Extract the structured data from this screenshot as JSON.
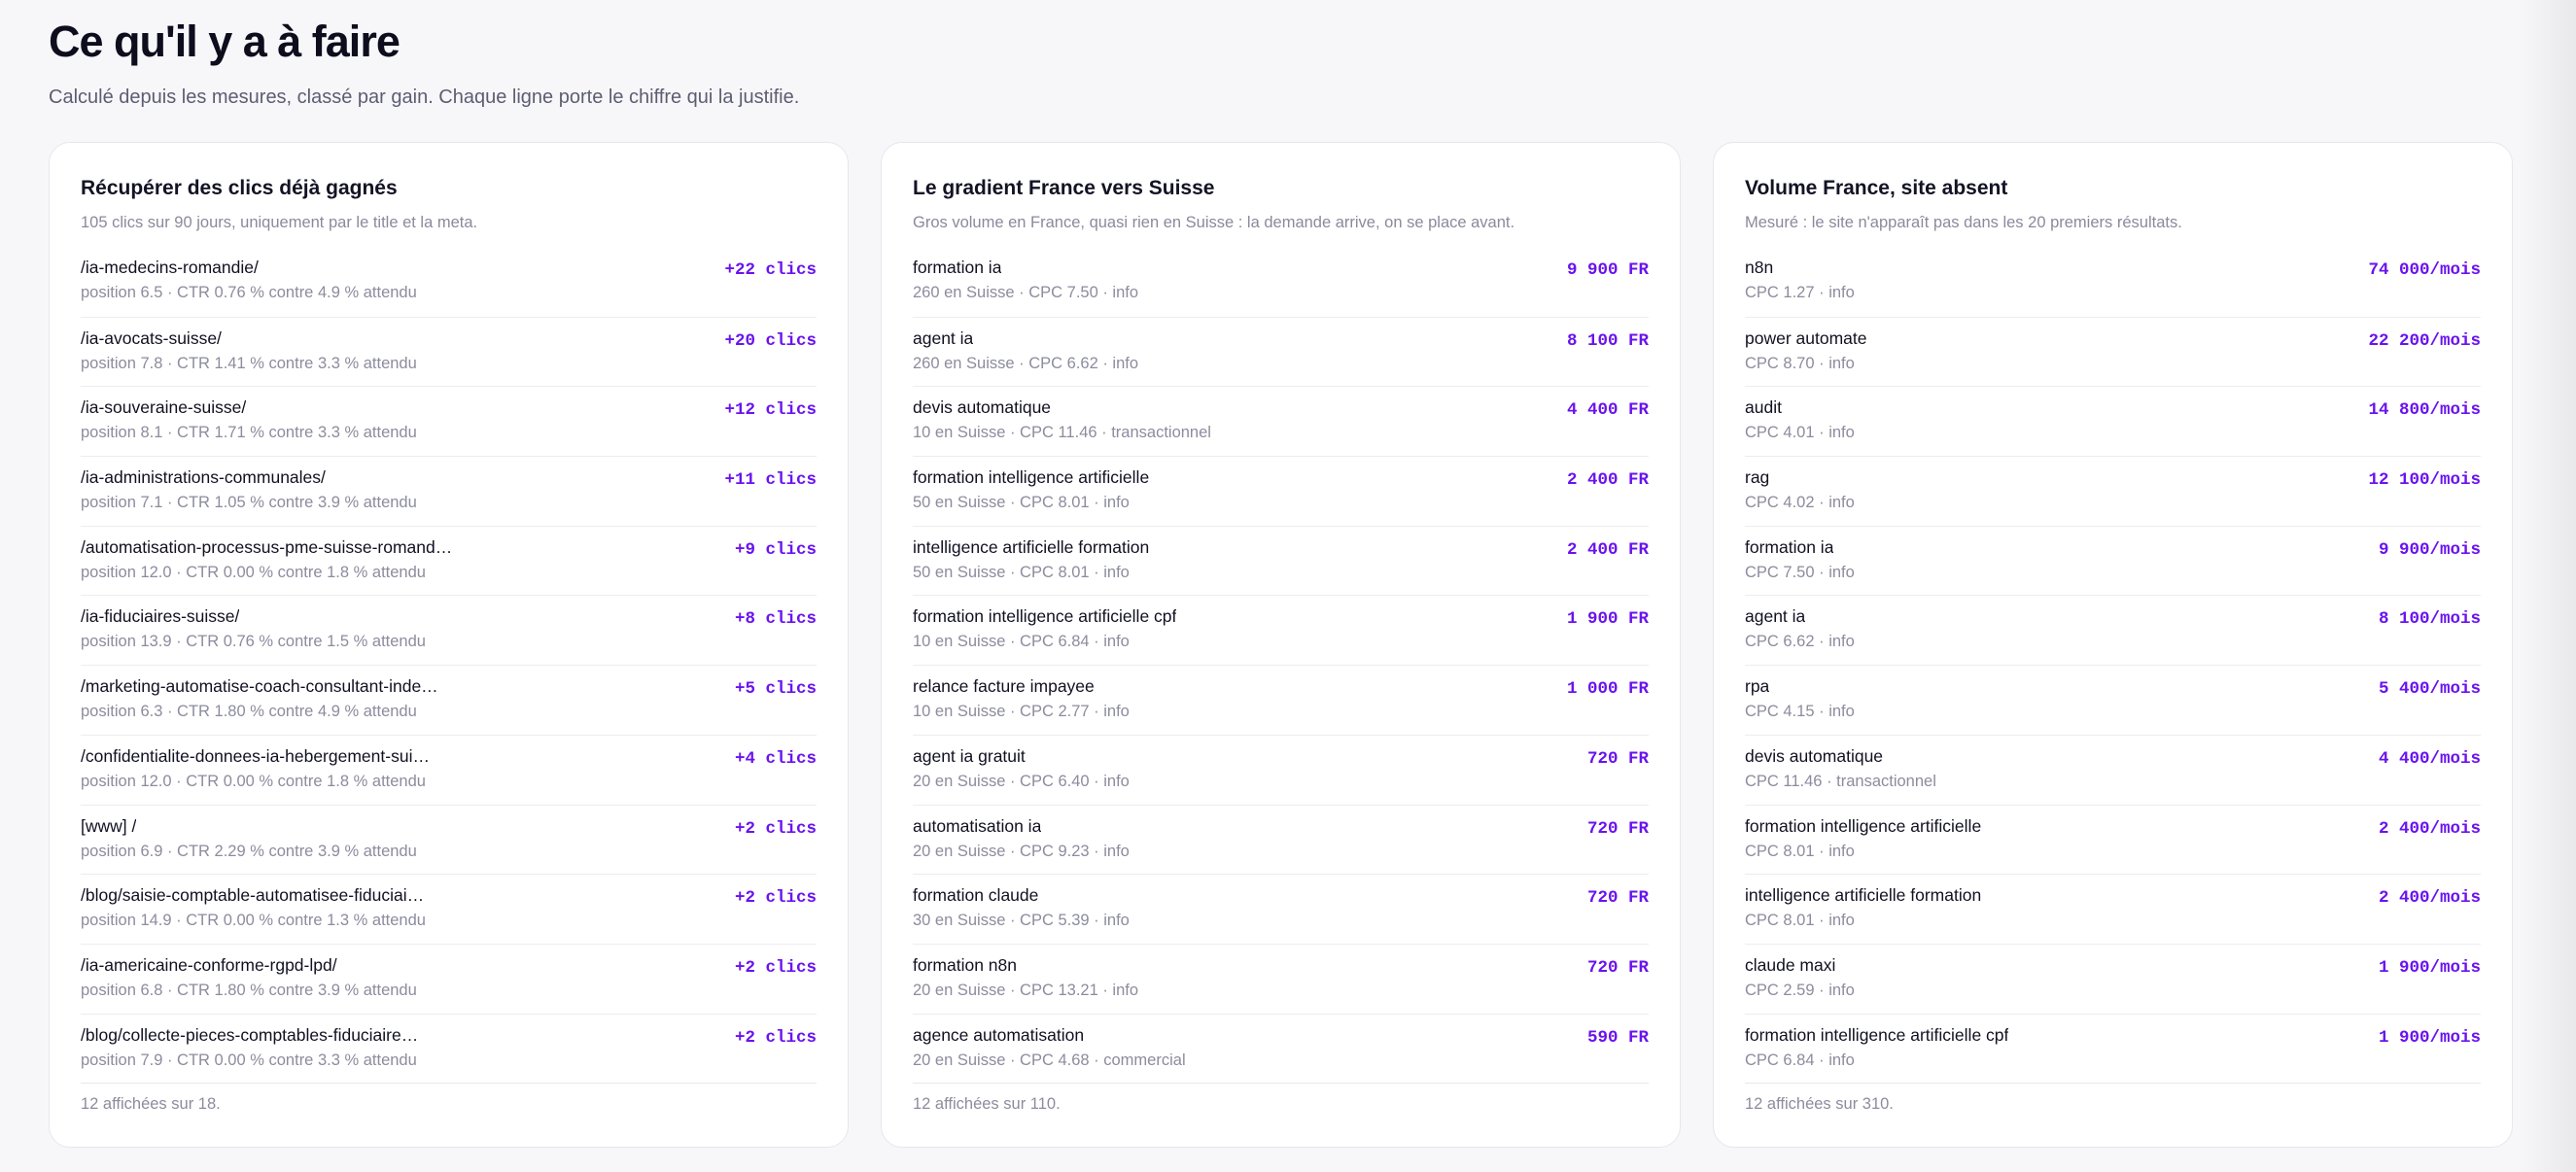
{
  "page": {
    "title": "Ce qu'il y a à faire",
    "subtitle": "Calculé depuis les mesures, classé par gain. Chaque ligne porte le chiffre qui la justifie."
  },
  "cards": [
    {
      "title": "Récupérer des clics déjà gagnés",
      "description": "105 clics sur 90 jours, uniquement par le title et la meta.",
      "footer": "12 affichées sur 18.",
      "rows": [
        {
          "title": "/ia-medecins-romandie/",
          "meta": "position 6.5 · CTR 0.76 % contre 4.9 % attendu",
          "value": "+22 clics"
        },
        {
          "title": "/ia-avocats-suisse/",
          "meta": "position 7.8 · CTR 1.41 % contre 3.3 % attendu",
          "value": "+20 clics"
        },
        {
          "title": "/ia-souveraine-suisse/",
          "meta": "position 8.1 · CTR 1.71 % contre 3.3 % attendu",
          "value": "+12 clics"
        },
        {
          "title": "/ia-administrations-communales/",
          "meta": "position 7.1 · CTR 1.05 % contre 3.9 % attendu",
          "value": "+11 clics"
        },
        {
          "title": "/automatisation-processus-pme-suisse-romand…",
          "meta": "position 12.0 · CTR 0.00 % contre 1.8 % attendu",
          "value": "+9 clics"
        },
        {
          "title": "/ia-fiduciaires-suisse/",
          "meta": "position 13.9 · CTR 0.76 % contre 1.5 % attendu",
          "value": "+8 clics"
        },
        {
          "title": "/marketing-automatise-coach-consultant-inde…",
          "meta": "position 6.3 · CTR 1.80 % contre 4.9 % attendu",
          "value": "+5 clics"
        },
        {
          "title": "/confidentialite-donnees-ia-hebergement-sui…",
          "meta": "position 12.0 · CTR 0.00 % contre 1.8 % attendu",
          "value": "+4 clics"
        },
        {
          "title": "[www] /",
          "meta": "position 6.9 · CTR 2.29 % contre 3.9 % attendu",
          "value": "+2 clics"
        },
        {
          "title": "/blog/saisie-comptable-automatisee-fiduciai…",
          "meta": "position 14.9 · CTR 0.00 % contre 1.3 % attendu",
          "value": "+2 clics"
        },
        {
          "title": "/ia-americaine-conforme-rgpd-lpd/",
          "meta": "position 6.8 · CTR 1.80 % contre 3.9 % attendu",
          "value": "+2 clics"
        },
        {
          "title": "/blog/collecte-pieces-comptables-fiduciaire…",
          "meta": "position 7.9 · CTR 0.00 % contre 3.3 % attendu",
          "value": "+2 clics"
        }
      ]
    },
    {
      "title": "Le gradient France vers Suisse",
      "description": "Gros volume en France, quasi rien en Suisse : la demande arrive, on se place avant.",
      "footer": "12 affichées sur 110.",
      "rows": [
        {
          "title": "formation ia",
          "meta": "260 en Suisse · CPC 7.50 · info",
          "value": "9 900 FR"
        },
        {
          "title": "agent ia",
          "meta": "260 en Suisse · CPC 6.62 · info",
          "value": "8 100 FR"
        },
        {
          "title": "devis automatique",
          "meta": "10 en Suisse · CPC 11.46 · transactionnel",
          "value": "4 400 FR"
        },
        {
          "title": "formation intelligence artificielle",
          "meta": "50 en Suisse · CPC 8.01 · info",
          "value": "2 400 FR"
        },
        {
          "title": "intelligence artificielle formation",
          "meta": "50 en Suisse · CPC 8.01 · info",
          "value": "2 400 FR"
        },
        {
          "title": "formation intelligence artificielle cpf",
          "meta": "10 en Suisse · CPC 6.84 · info",
          "value": "1 900 FR"
        },
        {
          "title": "relance facture impayee",
          "meta": "10 en Suisse · CPC 2.77 · info",
          "value": "1 000 FR"
        },
        {
          "title": "agent ia gratuit",
          "meta": "20 en Suisse · CPC 6.40 · info",
          "value": "720 FR"
        },
        {
          "title": "automatisation ia",
          "meta": "20 en Suisse · CPC 9.23 · info",
          "value": "720 FR"
        },
        {
          "title": "formation claude",
          "meta": "30 en Suisse · CPC 5.39 · info",
          "value": "720 FR"
        },
        {
          "title": "formation n8n",
          "meta": "20 en Suisse · CPC 13.21 · info",
          "value": "720 FR"
        },
        {
          "title": "agence automatisation",
          "meta": "20 en Suisse · CPC 4.68 · commercial",
          "value": "590 FR"
        }
      ]
    },
    {
      "title": "Volume France, site absent",
      "description": "Mesuré : le site n'apparaît pas dans les 20 premiers résultats.",
      "footer": "12 affichées sur 310.",
      "rows": [
        {
          "title": "n8n",
          "meta": "CPC 1.27 · info",
          "value": "74 000/mois"
        },
        {
          "title": "power automate",
          "meta": "CPC 8.70 · info",
          "value": "22 200/mois"
        },
        {
          "title": "audit",
          "meta": "CPC 4.01 · info",
          "value": "14 800/mois"
        },
        {
          "title": "rag",
          "meta": "CPC 4.02 · info",
          "value": "12 100/mois"
        },
        {
          "title": "formation ia",
          "meta": "CPC 7.50 · info",
          "value": "9 900/mois"
        },
        {
          "title": "agent ia",
          "meta": "CPC 6.62 · info",
          "value": "8 100/mois"
        },
        {
          "title": "rpa",
          "meta": "CPC 4.15 · info",
          "value": "5 400/mois"
        },
        {
          "title": "devis automatique",
          "meta": "CPC 11.46 · transactionnel",
          "value": "4 400/mois"
        },
        {
          "title": "formation intelligence artificielle",
          "meta": "CPC 8.01 · info",
          "value": "2 400/mois"
        },
        {
          "title": "intelligence artificielle formation",
          "meta": "CPC 8.01 · info",
          "value": "2 400/mois"
        },
        {
          "title": "claude maxi",
          "meta": "CPC 2.59 · info",
          "value": "1 900/mois"
        },
        {
          "title": "formation intelligence artificielle cpf",
          "meta": "CPC 6.84 · info",
          "value": "1 900/mois"
        }
      ]
    }
  ],
  "colors": {
    "accent": "#6a13ee",
    "background": "#f7f7fa",
    "card": "#ffffff",
    "muted_text": "#8c8c9e"
  }
}
